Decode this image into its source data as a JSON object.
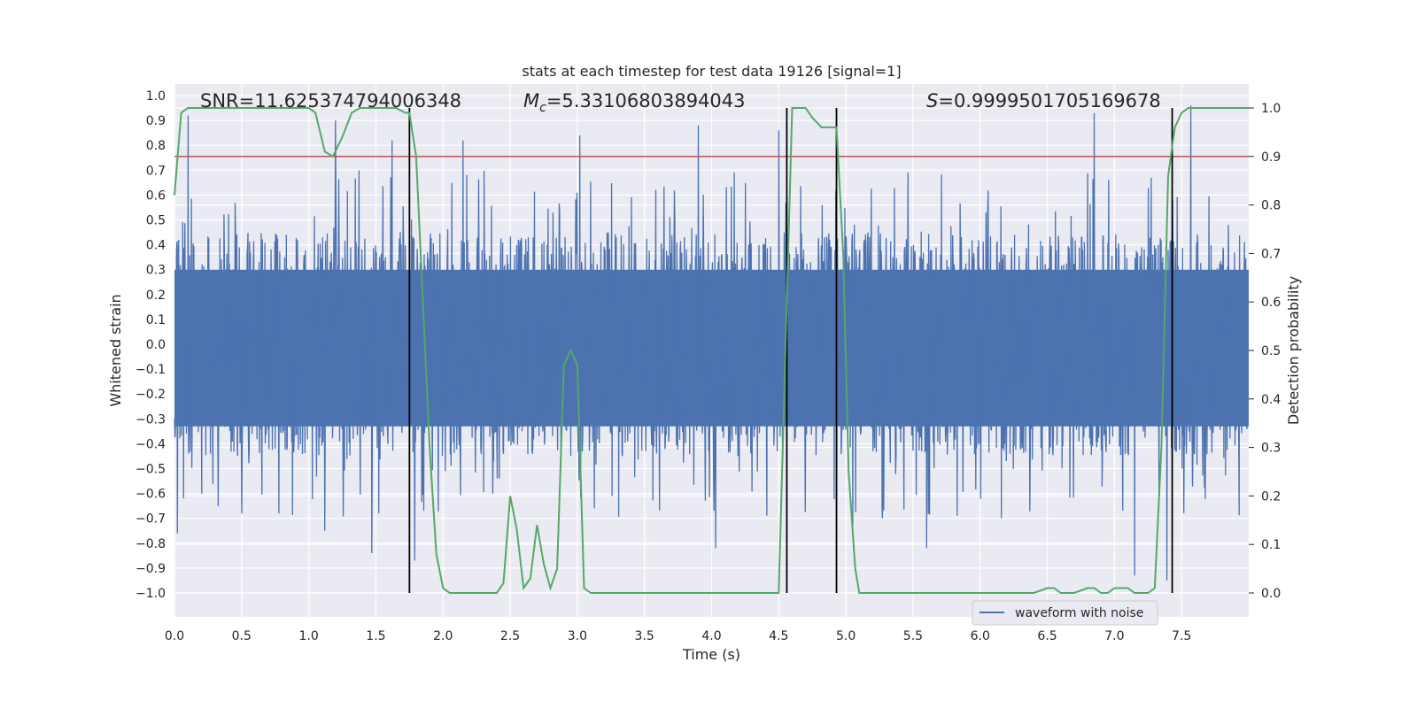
{
  "chart_data": {
    "type": "line",
    "title": "stats at each timestep for test data 19126 [signal=1]",
    "xlabel": "Time (s)",
    "ylabel_left": "Whitened strain",
    "ylabel_right": "Detection probability",
    "xlim": [
      0.0,
      8.0
    ],
    "ylim_left": [
      -1.1,
      1.05
    ],
    "ylim_right": [
      -0.047,
      1.0
    ],
    "x_ticks": [
      "0.0",
      "0.5",
      "1.0",
      "1.5",
      "2.0",
      "2.5",
      "3.0",
      "3.5",
      "4.0",
      "4.5",
      "5.0",
      "5.5",
      "6.0",
      "6.5",
      "7.0",
      "7.5"
    ],
    "y_left_ticks": [
      "1.0",
      "0.9",
      "0.8",
      "0.7",
      "0.6",
      "0.5",
      "0.4",
      "0.3",
      "0.2",
      "0.1",
      "0.0",
      "-0.1",
      "-0.2",
      "-0.3",
      "-0.4",
      "-0.5",
      "-0.6",
      "-0.7",
      "-0.8",
      "-0.9",
      "-1.0"
    ],
    "y_right_ticks": [
      "1.0",
      "0.9",
      "0.8",
      "0.7",
      "0.6",
      "0.5",
      "0.4",
      "0.3",
      "0.2",
      "0.1",
      "0.0"
    ],
    "annotations": {
      "snr": "SNR=11.625374794006348",
      "mc_symbol": "M",
      "mc_sub": "c",
      "mc_value": "=5.33106803894043",
      "s_symbol": "S",
      "s_value": "=0.9999501705169678"
    },
    "legend": {
      "label": "waveform with noise",
      "position": "lower-right"
    },
    "colors": {
      "waveform": "#4c72b0",
      "probability": "#55a868",
      "threshold": "#c44e52",
      "markers": "#000000",
      "background": "#eaeaf2",
      "grid": "#ffffff"
    },
    "threshold_probability": 0.9,
    "vertical_markers": [
      1.75,
      4.56,
      4.93,
      7.43
    ],
    "waveform": {
      "description_range": [
        -1.0,
        1.0
      ],
      "typical_envelope": [
        -0.45,
        0.45
      ],
      "peaks": [
        [
          0.02,
          -0.76
        ],
        [
          0.1,
          0.92
        ],
        [
          0.5,
          -0.68
        ],
        [
          1.2,
          0.9
        ],
        [
          1.12,
          -0.75
        ],
        [
          1.47,
          -0.84
        ],
        [
          1.62,
          0.82
        ],
        [
          1.79,
          -0.87
        ],
        [
          2.15,
          0.82
        ],
        [
          3.02,
          0.84
        ],
        [
          3.9,
          0.88
        ],
        [
          4.03,
          -0.82
        ],
        [
          4.5,
          0.86
        ],
        [
          4.93,
          -0.75
        ],
        [
          5.05,
          -0.74
        ],
        [
          5.6,
          -0.82
        ],
        [
          6.85,
          0.93
        ],
        [
          7.15,
          -0.93
        ],
        [
          7.39,
          -0.95
        ],
        [
          7.57,
          0.96
        ]
      ]
    },
    "detection_probability": {
      "x": [
        0.0,
        0.05,
        0.1,
        0.3,
        0.6,
        0.9,
        1.0,
        1.05,
        1.12,
        1.18,
        1.25,
        1.32,
        1.38,
        1.45,
        1.55,
        1.65,
        1.72,
        1.75,
        1.8,
        1.85,
        1.9,
        1.95,
        2.0,
        2.05,
        2.2,
        2.4,
        2.45,
        2.5,
        2.55,
        2.6,
        2.65,
        2.7,
        2.75,
        2.8,
        2.85,
        2.9,
        2.95,
        3.0,
        3.05,
        3.1,
        3.15,
        3.2,
        3.5,
        4.0,
        4.5,
        4.55,
        4.6,
        4.65,
        4.7,
        4.75,
        4.82,
        4.9,
        4.93,
        4.98,
        5.02,
        5.07,
        5.1,
        5.2,
        6.0,
        6.4,
        6.5,
        6.55,
        6.6,
        6.7,
        6.8,
        6.85,
        6.9,
        6.95,
        7.0,
        7.05,
        7.1,
        7.15,
        7.2,
        7.25,
        7.3,
        7.35,
        7.4,
        7.45,
        7.5,
        7.55,
        7.6,
        7.7,
        8.0
      ],
      "y": [
        0.82,
        0.99,
        1.0,
        1.0,
        1.0,
        1.0,
        1.0,
        0.99,
        0.91,
        0.9,
        0.94,
        0.99,
        1.0,
        1.0,
        1.0,
        1.0,
        0.99,
        0.99,
        0.9,
        0.6,
        0.3,
        0.08,
        0.01,
        0.0,
        0.0,
        0.0,
        0.02,
        0.2,
        0.13,
        0.01,
        0.03,
        0.14,
        0.06,
        0.01,
        0.05,
        0.47,
        0.5,
        0.47,
        0.01,
        0.0,
        0.0,
        0.0,
        0.0,
        0.0,
        0.0,
        0.5,
        1.0,
        1.0,
        1.0,
        0.98,
        0.96,
        0.96,
        0.96,
        0.7,
        0.25,
        0.05,
        0.0,
        0.0,
        0.0,
        0.0,
        0.01,
        0.01,
        0.0,
        0.0,
        0.01,
        0.01,
        0.0,
        0.0,
        0.01,
        0.01,
        0.01,
        0.0,
        0.0,
        0.0,
        0.01,
        0.3,
        0.86,
        0.96,
        0.99,
        1.0,
        1.0,
        1.0,
        1.0
      ]
    }
  }
}
